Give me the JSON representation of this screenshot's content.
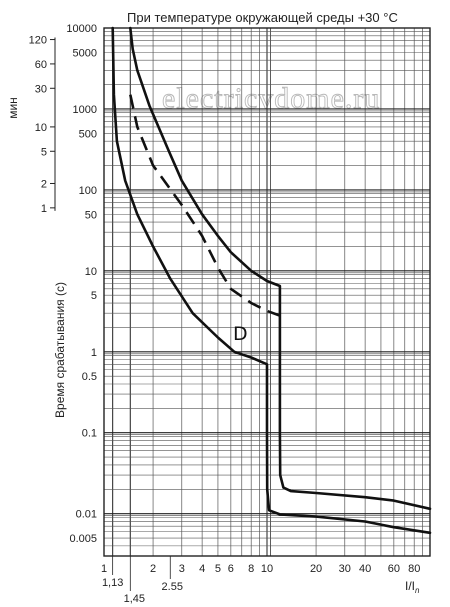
{
  "chart_data": {
    "type": "line",
    "title": "При температуре окружающей среды +30 °C",
    "xlabel": "I/I",
    "xlabel_sub": "n",
    "ylabel": "Время срабатывания (с)",
    "minutes_label": "мин",
    "watermark": "electricvdome.ru",
    "curve_label": "D",
    "x_scale": "log",
    "y_scale": "log",
    "xlim": [
      1,
      100
    ],
    "ylim": [
      0.003,
      10000
    ],
    "grid": true,
    "x_ticks": [
      {
        "v": 1,
        "label": "1"
      },
      {
        "v": 1.13,
        "label": "1,13"
      },
      {
        "v": 1.45,
        "label": "1,45"
      },
      {
        "v": 2,
        "label": "2"
      },
      {
        "v": 2.55,
        "label": "2.55"
      },
      {
        "v": 3,
        "label": "3"
      },
      {
        "v": 4,
        "label": "4"
      },
      {
        "v": 5,
        "label": "5"
      },
      {
        "v": 6,
        "label": "6"
      },
      {
        "v": 8,
        "label": "8"
      },
      {
        "v": 10,
        "label": "10"
      },
      {
        "v": 20,
        "label": "20"
      },
      {
        "v": 30,
        "label": "30"
      },
      {
        "v": 40,
        "label": "40"
      },
      {
        "v": 60,
        "label": "60"
      },
      {
        "v": 80,
        "label": "80"
      }
    ],
    "y_ticks": [
      {
        "v": 10000,
        "label": "10000"
      },
      {
        "v": 5000,
        "label": "5000"
      },
      {
        "v": 1000,
        "label": "1000"
      },
      {
        "v": 500,
        "label": "500"
      },
      {
        "v": 100,
        "label": "100"
      },
      {
        "v": 50,
        "label": "50"
      },
      {
        "v": 10,
        "label": "10"
      },
      {
        "v": 5,
        "label": "5"
      },
      {
        "v": 1,
        "label": "1"
      },
      {
        "v": 0.5,
        "label": "0.5"
      },
      {
        "v": 0.1,
        "label": "0.1"
      },
      {
        "v": 0.01,
        "label": "0.01"
      },
      {
        "v": 0.005,
        "label": "0.005"
      }
    ],
    "minute_ticks": [
      {
        "v": 120,
        "label": "120"
      },
      {
        "v": 60,
        "label": "60"
      },
      {
        "v": 30,
        "label": "30"
      },
      {
        "v": 10,
        "label": "10"
      },
      {
        "v": 5,
        "label": "5"
      },
      {
        "v": 2,
        "label": "2"
      },
      {
        "v": 1,
        "label": "1"
      }
    ],
    "series": [
      {
        "style": "solid",
        "points": [
          [
            1.13,
            10000
          ],
          [
            1.15,
            1500
          ],
          [
            1.2,
            400
          ],
          [
            1.35,
            130
          ],
          [
            1.6,
            50
          ],
          [
            2,
            20
          ],
          [
            2.55,
            8
          ],
          [
            3.5,
            3
          ],
          [
            5,
            1.5
          ],
          [
            6.3,
            1
          ],
          [
            8,
            0.85
          ],
          [
            10,
            0.7
          ],
          [
            10,
            0.1
          ],
          [
            10.03,
            0.02
          ],
          [
            10.3,
            0.011
          ],
          [
            12,
            0.0098
          ],
          [
            20,
            0.0092
          ],
          [
            40,
            0.008
          ],
          [
            60,
            0.0068
          ],
          [
            100,
            0.0058
          ]
        ]
      },
      {
        "style": "solid",
        "points": [
          [
            1.45,
            10000
          ],
          [
            1.5,
            5500
          ],
          [
            1.6,
            3000
          ],
          [
            1.9,
            1100
          ],
          [
            2.5,
            300
          ],
          [
            3,
            130
          ],
          [
            4,
            50
          ],
          [
            5,
            27
          ],
          [
            6,
            17
          ],
          [
            8,
            10
          ],
          [
            10,
            7.5
          ],
          [
            12,
            6.5
          ],
          [
            12,
            0.1
          ],
          [
            12.05,
            0.03
          ],
          [
            12.6,
            0.021
          ],
          [
            14,
            0.019
          ],
          [
            20,
            0.018
          ],
          [
            40,
            0.016
          ],
          [
            60,
            0.0145
          ],
          [
            100,
            0.0115
          ]
        ]
      },
      {
        "style": "dashed",
        "points": [
          [
            1.45,
            1500
          ],
          [
            1.6,
            600
          ],
          [
            2,
            200
          ],
          [
            3,
            65
          ],
          [
            4,
            27
          ],
          [
            5,
            11
          ],
          [
            6,
            6
          ],
          [
            8,
            4
          ],
          [
            10,
            3.2
          ],
          [
            12,
            2.8
          ]
        ]
      }
    ]
  }
}
